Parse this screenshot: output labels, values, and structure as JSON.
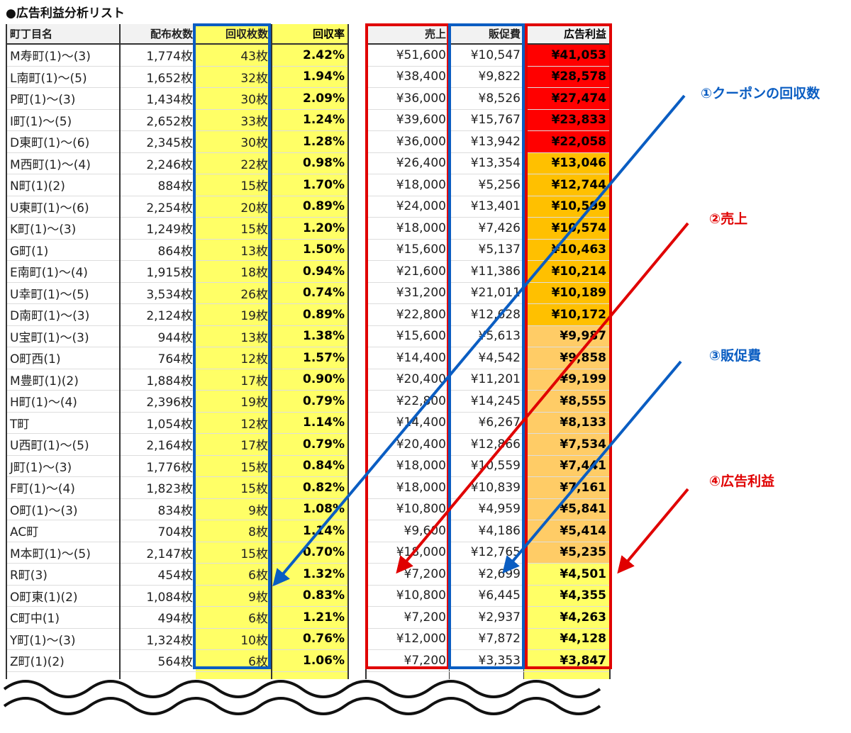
{
  "title": "●広告利益分析リスト",
  "headers_left": [
    "町丁目名",
    "配布枚数",
    "回収枚数",
    "回収率"
  ],
  "headers_right": [
    "売上",
    "販促費",
    "広告利益"
  ],
  "colors": {
    "tier1": "#ff0000",
    "tier2": "#ffc000",
    "tier3": "#ffcc66",
    "tier4": "#ffff66",
    "blue": "#0a5dc2",
    "red": "#e00000"
  },
  "rows": [
    {
      "name": "M寿町(1)〜(3)",
      "dist": "1,774枚",
      "ret": "43枚",
      "rate": "2.42%",
      "sales": "¥51,600",
      "cost": "¥10,547",
      "profit": "¥41,053",
      "tier": 1
    },
    {
      "name": "L南町(1)〜(5)",
      "dist": "1,652枚",
      "ret": "32枚",
      "rate": "1.94%",
      "sales": "¥38,400",
      "cost": "¥9,822",
      "profit": "¥28,578",
      "tier": 1
    },
    {
      "name": "P町(1)〜(3)",
      "dist": "1,434枚",
      "ret": "30枚",
      "rate": "2.09%",
      "sales": "¥36,000",
      "cost": "¥8,526",
      "profit": "¥27,474",
      "tier": 1
    },
    {
      "name": "I町(1)〜(5)",
      "dist": "2,652枚",
      "ret": "33枚",
      "rate": "1.24%",
      "sales": "¥39,600",
      "cost": "¥15,767",
      "profit": "¥23,833",
      "tier": 1
    },
    {
      "name": "D東町(1)〜(6)",
      "dist": "2,345枚",
      "ret": "30枚",
      "rate": "1.28%",
      "sales": "¥36,000",
      "cost": "¥13,942",
      "profit": "¥22,058",
      "tier": 1
    },
    {
      "name": "M西町(1)〜(4)",
      "dist": "2,246枚",
      "ret": "22枚",
      "rate": "0.98%",
      "sales": "¥26,400",
      "cost": "¥13,354",
      "profit": "¥13,046",
      "tier": 2
    },
    {
      "name": "N町(1)(2)",
      "dist": "884枚",
      "ret": "15枚",
      "rate": "1.70%",
      "sales": "¥18,000",
      "cost": "¥5,256",
      "profit": "¥12,744",
      "tier": 2
    },
    {
      "name": "U東町(1)〜(6)",
      "dist": "2,254枚",
      "ret": "20枚",
      "rate": "0.89%",
      "sales": "¥24,000",
      "cost": "¥13,401",
      "profit": "¥10,599",
      "tier": 2
    },
    {
      "name": "K町(1)〜(3)",
      "dist": "1,249枚",
      "ret": "15枚",
      "rate": "1.20%",
      "sales": "¥18,000",
      "cost": "¥7,426",
      "profit": "¥10,574",
      "tier": 2
    },
    {
      "name": "G町(1)",
      "dist": "864枚",
      "ret": "13枚",
      "rate": "1.50%",
      "sales": "¥15,600",
      "cost": "¥5,137",
      "profit": "¥10,463",
      "tier": 2
    },
    {
      "name": "E南町(1)〜(4)",
      "dist": "1,915枚",
      "ret": "18枚",
      "rate": "0.94%",
      "sales": "¥21,600",
      "cost": "¥11,386",
      "profit": "¥10,214",
      "tier": 2
    },
    {
      "name": "U幸町(1)〜(5)",
      "dist": "3,534枚",
      "ret": "26枚",
      "rate": "0.74%",
      "sales": "¥31,200",
      "cost": "¥21,011",
      "profit": "¥10,189",
      "tier": 2
    },
    {
      "name": "D南町(1)〜(3)",
      "dist": "2,124枚",
      "ret": "19枚",
      "rate": "0.89%",
      "sales": "¥22,800",
      "cost": "¥12,628",
      "profit": "¥10,172",
      "tier": 2
    },
    {
      "name": "U宝町(1)〜(3)",
      "dist": "944枚",
      "ret": "13枚",
      "rate": "1.38%",
      "sales": "¥15,600",
      "cost": "¥5,613",
      "profit": "¥9,987",
      "tier": 3
    },
    {
      "name": "O町西(1)",
      "dist": "764枚",
      "ret": "12枚",
      "rate": "1.57%",
      "sales": "¥14,400",
      "cost": "¥4,542",
      "profit": "¥9,858",
      "tier": 3
    },
    {
      "name": "M豊町(1)(2)",
      "dist": "1,884枚",
      "ret": "17枚",
      "rate": "0.90%",
      "sales": "¥20,400",
      "cost": "¥11,201",
      "profit": "¥9,199",
      "tier": 3
    },
    {
      "name": "H町(1)〜(4)",
      "dist": "2,396枚",
      "ret": "19枚",
      "rate": "0.79%",
      "sales": "¥22,800",
      "cost": "¥14,245",
      "profit": "¥8,555",
      "tier": 3
    },
    {
      "name": "T町",
      "dist": "1,054枚",
      "ret": "12枚",
      "rate": "1.14%",
      "sales": "¥14,400",
      "cost": "¥6,267",
      "profit": "¥8,133",
      "tier": 3
    },
    {
      "name": "U西町(1)〜(5)",
      "dist": "2,164枚",
      "ret": "17枚",
      "rate": "0.79%",
      "sales": "¥20,400",
      "cost": "¥12,866",
      "profit": "¥7,534",
      "tier": 3
    },
    {
      "name": "J町(1)〜(3)",
      "dist": "1,776枚",
      "ret": "15枚",
      "rate": "0.84%",
      "sales": "¥18,000",
      "cost": "¥10,559",
      "profit": "¥7,441",
      "tier": 3
    },
    {
      "name": "F町(1)〜(4)",
      "dist": "1,823枚",
      "ret": "15枚",
      "rate": "0.82%",
      "sales": "¥18,000",
      "cost": "¥10,839",
      "profit": "¥7,161",
      "tier": 3
    },
    {
      "name": "O町(1)〜(3)",
      "dist": "834枚",
      "ret": "9枚",
      "rate": "1.08%",
      "sales": "¥10,800",
      "cost": "¥4,959",
      "profit": "¥5,841",
      "tier": 3
    },
    {
      "name": "AC町",
      "dist": "704枚",
      "ret": "8枚",
      "rate": "1.14%",
      "sales": "¥9,600",
      "cost": "¥4,186",
      "profit": "¥5,414",
      "tier": 3
    },
    {
      "name": "M本町(1)〜(5)",
      "dist": "2,147枚",
      "ret": "15枚",
      "rate": "0.70%",
      "sales": "¥18,000",
      "cost": "¥12,765",
      "profit": "¥5,235",
      "tier": 3
    },
    {
      "name": "R町(3)",
      "dist": "454枚",
      "ret": "6枚",
      "rate": "1.32%",
      "sales": "¥7,200",
      "cost": "¥2,699",
      "profit": "¥4,501",
      "tier": 4
    },
    {
      "name": "O町東(1)(2)",
      "dist": "1,084枚",
      "ret": "9枚",
      "rate": "0.83%",
      "sales": "¥10,800",
      "cost": "¥6,445",
      "profit": "¥4,355",
      "tier": 4
    },
    {
      "name": "C町中(1)",
      "dist": "494枚",
      "ret": "6枚",
      "rate": "1.21%",
      "sales": "¥7,200",
      "cost": "¥2,937",
      "profit": "¥4,263",
      "tier": 4
    },
    {
      "name": "Y町(1)〜(3)",
      "dist": "1,324枚",
      "ret": "10枚",
      "rate": "0.76%",
      "sales": "¥12,000",
      "cost": "¥7,872",
      "profit": "¥4,128",
      "tier": 4
    },
    {
      "name": "Z町(1)(2)",
      "dist": "564枚",
      "ret": "6枚",
      "rate": "1.06%",
      "sales": "¥7,200",
      "cost": "¥3,353",
      "profit": "¥3,847",
      "tier": 4
    }
  ],
  "annotations": [
    {
      "label": "①クーポンの回収数",
      "color": "blue"
    },
    {
      "label": "②売上",
      "color": "red"
    },
    {
      "label": "③販促費",
      "color": "blue"
    },
    {
      "label": "④広告利益",
      "color": "red"
    }
  ]
}
